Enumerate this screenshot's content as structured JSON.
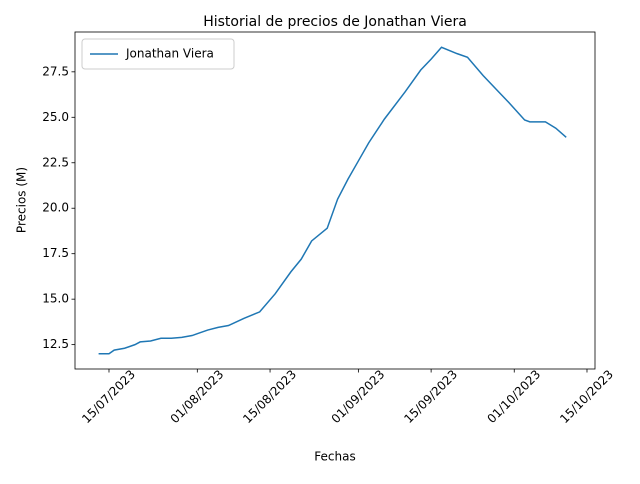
{
  "chart_data": {
    "type": "line",
    "title": "Historial de precios de Jonathan Viera",
    "xlabel": "Fechas",
    "ylabel": "Precios (M)",
    "x": [
      "2023-07-13",
      "2023-07-15",
      "2023-07-16",
      "2023-07-18",
      "2023-07-20",
      "2023-07-21",
      "2023-07-23",
      "2023-07-25",
      "2023-07-27",
      "2023-07-29",
      "2023-07-31",
      "2023-08-01",
      "2023-08-03",
      "2023-08-05",
      "2023-08-07",
      "2023-08-10",
      "2023-08-13",
      "2023-08-16",
      "2023-08-19",
      "2023-08-21",
      "2023-08-23",
      "2023-08-26",
      "2023-08-28",
      "2023-08-30",
      "2023-09-01",
      "2023-09-03",
      "2023-09-06",
      "2023-09-10",
      "2023-09-13",
      "2023-09-15",
      "2023-09-17",
      "2023-09-20",
      "2023-09-22",
      "2023-09-25",
      "2023-09-28",
      "2023-09-30",
      "2023-10-03",
      "2023-10-04",
      "2023-10-07",
      "2023-10-09",
      "2023-10-11"
    ],
    "series": [
      {
        "name": "Jonathan Viera",
        "color": "#1f77b4",
        "values": [
          12.0,
          12.0,
          12.2,
          12.3,
          12.5,
          12.65,
          12.7,
          12.85,
          12.85,
          12.9,
          13.0,
          13.1,
          13.3,
          13.45,
          13.55,
          13.95,
          14.3,
          15.3,
          16.5,
          17.2,
          18.2,
          18.9,
          20.5,
          21.6,
          22.6,
          23.6,
          24.9,
          26.4,
          27.6,
          28.2,
          28.85,
          28.5,
          28.3,
          27.3,
          26.4,
          25.8,
          24.85,
          24.75,
          24.75,
          24.4,
          23.9
        ]
      }
    ],
    "xlim": [
      "2023-07-08T11:00",
      "2023-10-16T13:00"
    ],
    "xticks": [
      {
        "value": "2023-07-15",
        "label": "15/07/2023"
      },
      {
        "value": "2023-08-01",
        "label": "01/08/2023"
      },
      {
        "value": "2023-08-15",
        "label": "15/08/2023"
      },
      {
        "value": "2023-09-01",
        "label": "01/09/2023"
      },
      {
        "value": "2023-09-15",
        "label": "15/09/2023"
      },
      {
        "value": "2023-10-01",
        "label": "01/10/2023"
      },
      {
        "value": "2023-10-15",
        "label": "15/10/2023"
      }
    ],
    "ylim": [
      11.16,
      29.69
    ],
    "yticks": [
      12.5,
      {
        "value": 15,
        "label": "15.0"
      },
      17.5,
      {
        "value": 20,
        "label": "20.0"
      },
      22.5,
      {
        "value": 25,
        "label": "25.0"
      },
      27.5
    ],
    "legend": "upper left"
  }
}
